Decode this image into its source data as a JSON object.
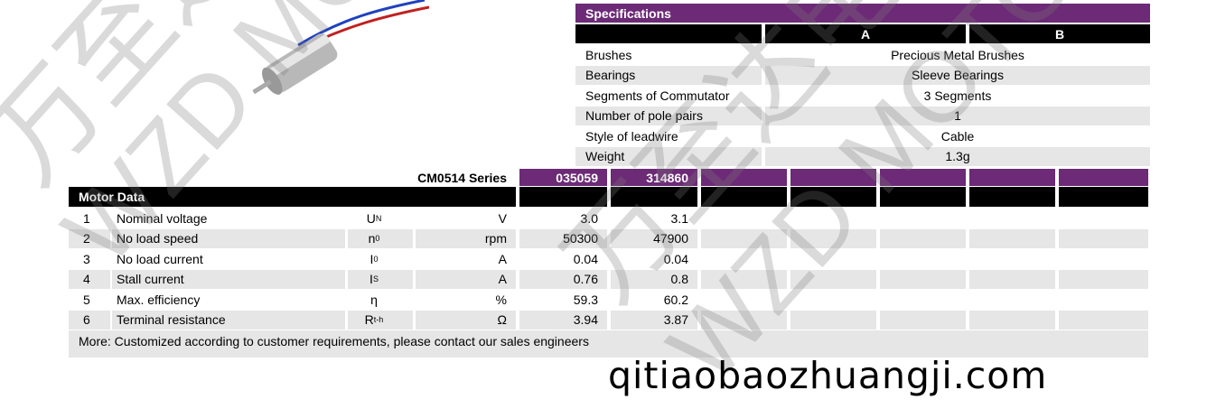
{
  "specs": {
    "title": "Specifications",
    "columns": [
      "A",
      "B"
    ],
    "rows": [
      {
        "label": "Brushes",
        "value": "Precious Metal Brushes"
      },
      {
        "label": "Bearings",
        "value": "Sleeve Bearings"
      },
      {
        "label": "Segments of Commutator",
        "value": "3 Segments"
      },
      {
        "label": "Number of pole pairs",
        "value": "1"
      },
      {
        "label": "Style of leadwire",
        "value": "Cable"
      },
      {
        "label": "Weight",
        "value": "1.3g"
      }
    ]
  },
  "motor": {
    "series": "CM0514 Series",
    "title": "Motor Data",
    "models": [
      "035059",
      "314860"
    ],
    "rows": [
      {
        "n": "1",
        "name": "Nominal voltage",
        "sym": "U",
        "sub": "N",
        "unit": "V",
        "v": [
          "3.0",
          "3.1"
        ]
      },
      {
        "n": "2",
        "name": "No load speed",
        "sym": "n",
        "sub": "0",
        "unit": "rpm",
        "v": [
          "50300",
          "47900"
        ]
      },
      {
        "n": "3",
        "name": "No load current",
        "sym": "I",
        "sub": "0",
        "unit": "A",
        "v": [
          "0.04",
          "0.04"
        ]
      },
      {
        "n": "4",
        "name": "Stall current",
        "sym": "I",
        "sub": "S",
        "unit": "A",
        "v": [
          "0.76",
          "0.8"
        ]
      },
      {
        "n": "5",
        "name": "Max. efficiency",
        "sym": "η",
        "sub": "",
        "unit": "%",
        "v": [
          "59.3",
          "60.2"
        ]
      },
      {
        "n": "6",
        "name": "Terminal resistance",
        "sym": "R",
        "sub": "t-h",
        "unit": "Ω",
        "v": [
          "3.94",
          "3.87"
        ]
      }
    ],
    "footer": "More: Customized according to customer requirements, please contact our sales engineers"
  },
  "watermark": {
    "cn": "万至达电",
    "en": "WZD MOTOR"
  },
  "site": "qitiaobaozhuangji.com",
  "colors": {
    "header": "#6c2a77",
    "row_alt": "#e6e6e6"
  }
}
